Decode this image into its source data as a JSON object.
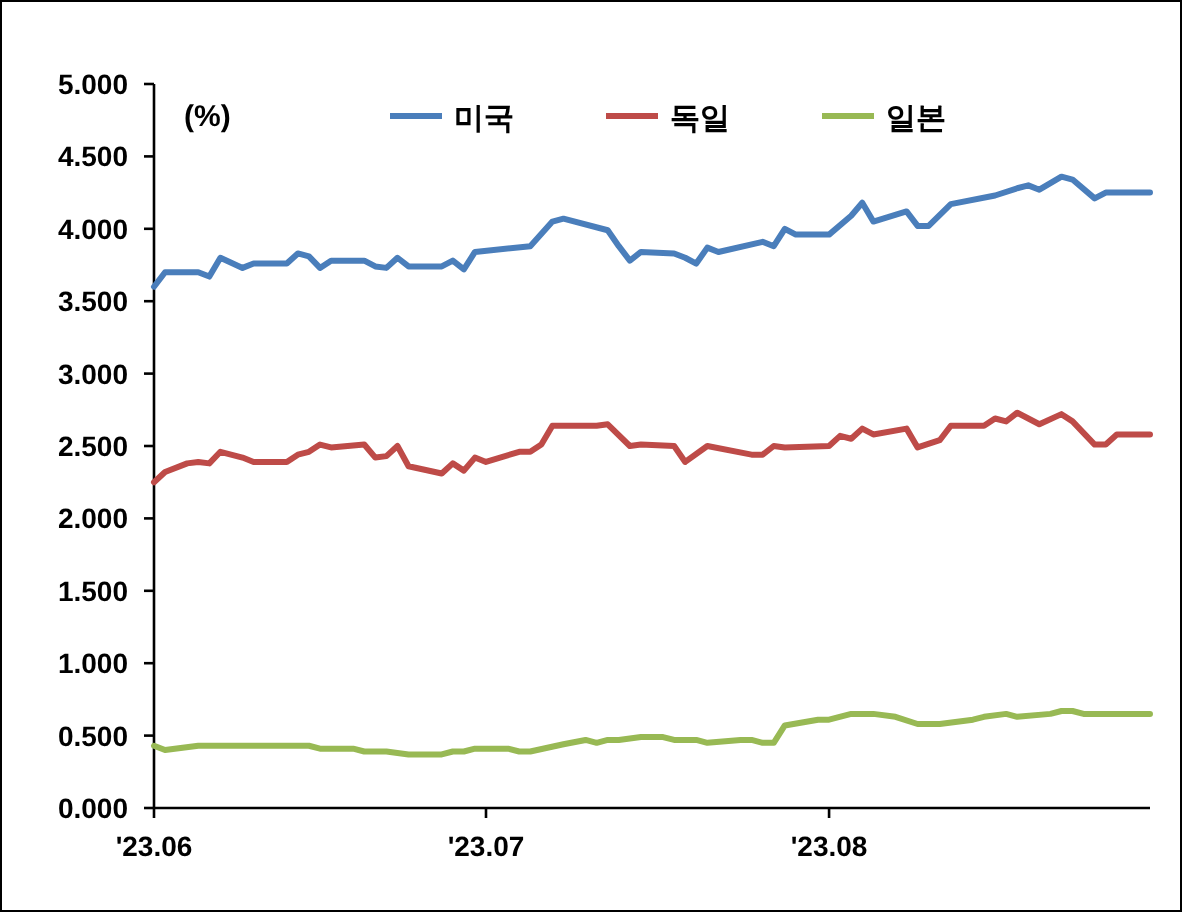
{
  "chart_data": {
    "type": "line",
    "annotations": [
      "(%)"
    ],
    "xlim": [
      "2023-06-01",
      "2023-08-30"
    ],
    "xticks": [
      {
        "value": "2023-06-01",
        "label": "'23.06"
      },
      {
        "value": "2023-07-01",
        "label": "'23.07"
      },
      {
        "value": "2023-08-01",
        "label": "'23.08"
      }
    ],
    "ylim": [
      0,
      5
    ],
    "yticks": [
      {
        "value": 0,
        "label": "0.000"
      },
      {
        "value": 0.5,
        "label": "0.500"
      },
      {
        "value": 1,
        "label": "1.000"
      },
      {
        "value": 1.5,
        "label": "1.500"
      },
      {
        "value": 2,
        "label": "2.000"
      },
      {
        "value": 2.5,
        "label": "2.500"
      },
      {
        "value": 3,
        "label": "3.000"
      },
      {
        "value": 3.5,
        "label": "3.500"
      },
      {
        "value": 4,
        "label": "4.000"
      },
      {
        "value": 4.5,
        "label": "4.500"
      },
      {
        "value": 5,
        "label": "5.000"
      }
    ],
    "grid": false,
    "legend": "top",
    "marker": "none",
    "line_style": "solid",
    "series": [
      {
        "name": "미국",
        "color": "#4a7ebb",
        "x": [
          "2023-06-01",
          "2023-06-02",
          "2023-06-05",
          "2023-06-06",
          "2023-06-07",
          "2023-06-09",
          "2023-06-10",
          "2023-06-13",
          "2023-06-14",
          "2023-06-15",
          "2023-06-16",
          "2023-06-17",
          "2023-06-20",
          "2023-06-21",
          "2023-06-22",
          "2023-06-23",
          "2023-06-24",
          "2023-06-27",
          "2023-06-28",
          "2023-06-29",
          "2023-06-30",
          "2023-07-05",
          "2023-07-07",
          "2023-07-08",
          "2023-07-12",
          "2023-07-13",
          "2023-07-14",
          "2023-07-15",
          "2023-07-18",
          "2023-07-19",
          "2023-07-20",
          "2023-07-21",
          "2023-07-22",
          "2023-07-26",
          "2023-07-27",
          "2023-07-28",
          "2023-07-29",
          "2023-08-01",
          "2023-08-03",
          "2023-08-04",
          "2023-08-05",
          "2023-08-08",
          "2023-08-09",
          "2023-08-10",
          "2023-08-12",
          "2023-08-16",
          "2023-08-18",
          "2023-08-19",
          "2023-08-20",
          "2023-08-22",
          "2023-08-23",
          "2023-08-25",
          "2023-08-26",
          "2023-08-30"
        ],
        "values": [
          3.6,
          3.7,
          3.7,
          3.67,
          3.8,
          3.73,
          3.76,
          3.76,
          3.83,
          3.81,
          3.73,
          3.78,
          3.78,
          3.74,
          3.73,
          3.8,
          3.74,
          3.74,
          3.78,
          3.72,
          3.84,
          3.88,
          4.05,
          4.07,
          3.99,
          3.88,
          3.78,
          3.84,
          3.83,
          3.8,
          3.76,
          3.87,
          3.84,
          3.91,
          3.88,
          4.0,
          3.96,
          3.96,
          4.09,
          4.18,
          4.05,
          4.12,
          4.02,
          4.02,
          4.17,
          4.23,
          4.28,
          4.3,
          4.27,
          4.36,
          4.34,
          4.21,
          4.25,
          4.25
        ]
      },
      {
        "name": "독일",
        "color": "#be4b48",
        "x": [
          "2023-06-01",
          "2023-06-02",
          "2023-06-04",
          "2023-06-05",
          "2023-06-06",
          "2023-06-07",
          "2023-06-09",
          "2023-06-10",
          "2023-06-13",
          "2023-06-14",
          "2023-06-15",
          "2023-06-16",
          "2023-06-17",
          "2023-06-20",
          "2023-06-21",
          "2023-06-22",
          "2023-06-23",
          "2023-06-24",
          "2023-06-27",
          "2023-06-28",
          "2023-06-29",
          "2023-06-30",
          "2023-07-01",
          "2023-07-04",
          "2023-07-05",
          "2023-07-06",
          "2023-07-07",
          "2023-07-11",
          "2023-07-12",
          "2023-07-14",
          "2023-07-15",
          "2023-07-18",
          "2023-07-19",
          "2023-07-21",
          "2023-07-25",
          "2023-07-26",
          "2023-07-27",
          "2023-07-28",
          "2023-08-01",
          "2023-08-02",
          "2023-08-03",
          "2023-08-04",
          "2023-08-05",
          "2023-08-08",
          "2023-08-09",
          "2023-08-11",
          "2023-08-12",
          "2023-08-15",
          "2023-08-16",
          "2023-08-17",
          "2023-08-18",
          "2023-08-20",
          "2023-08-22",
          "2023-08-23",
          "2023-08-25",
          "2023-08-26",
          "2023-08-27",
          "2023-08-30"
        ],
        "values": [
          2.25,
          2.32,
          2.38,
          2.39,
          2.38,
          2.46,
          2.42,
          2.39,
          2.39,
          2.44,
          2.46,
          2.51,
          2.49,
          2.51,
          2.42,
          2.43,
          2.5,
          2.36,
          2.31,
          2.38,
          2.33,
          2.42,
          2.39,
          2.46,
          2.46,
          2.51,
          2.64,
          2.64,
          2.65,
          2.5,
          2.51,
          2.5,
          2.39,
          2.5,
          2.44,
          2.44,
          2.5,
          2.49,
          2.5,
          2.57,
          2.55,
          2.62,
          2.58,
          2.62,
          2.49,
          2.54,
          2.64,
          2.64,
          2.69,
          2.67,
          2.73,
          2.65,
          2.72,
          2.67,
          2.51,
          2.51,
          2.58,
          2.58
        ]
      },
      {
        "name": "일본",
        "color": "#98b954",
        "x": [
          "2023-06-01",
          "2023-06-02",
          "2023-06-05",
          "2023-06-15",
          "2023-06-16",
          "2023-06-19",
          "2023-06-20",
          "2023-06-22",
          "2023-06-24",
          "2023-06-27",
          "2023-06-28",
          "2023-06-29",
          "2023-06-30",
          "2023-07-03",
          "2023-07-04",
          "2023-07-05",
          "2023-07-08",
          "2023-07-10",
          "2023-07-11",
          "2023-07-12",
          "2023-07-13",
          "2023-07-15",
          "2023-07-17",
          "2023-07-18",
          "2023-07-20",
          "2023-07-21",
          "2023-07-24",
          "2023-07-25",
          "2023-07-26",
          "2023-07-27",
          "2023-07-28",
          "2023-07-31",
          "2023-08-01",
          "2023-08-03",
          "2023-08-05",
          "2023-08-07",
          "2023-08-09",
          "2023-08-11",
          "2023-08-14",
          "2023-08-15",
          "2023-08-17",
          "2023-08-18",
          "2023-08-21",
          "2023-08-22",
          "2023-08-23",
          "2023-08-24",
          "2023-08-28",
          "2023-08-30"
        ],
        "values": [
          0.43,
          0.4,
          0.43,
          0.43,
          0.41,
          0.41,
          0.39,
          0.39,
          0.37,
          0.37,
          0.39,
          0.39,
          0.41,
          0.41,
          0.39,
          0.39,
          0.44,
          0.47,
          0.45,
          0.47,
          0.47,
          0.49,
          0.49,
          0.47,
          0.47,
          0.45,
          0.47,
          0.47,
          0.45,
          0.45,
          0.57,
          0.61,
          0.61,
          0.65,
          0.65,
          0.63,
          0.58,
          0.58,
          0.61,
          0.63,
          0.65,
          0.63,
          0.65,
          0.67,
          0.67,
          0.65,
          0.65,
          0.65
        ]
      }
    ]
  }
}
